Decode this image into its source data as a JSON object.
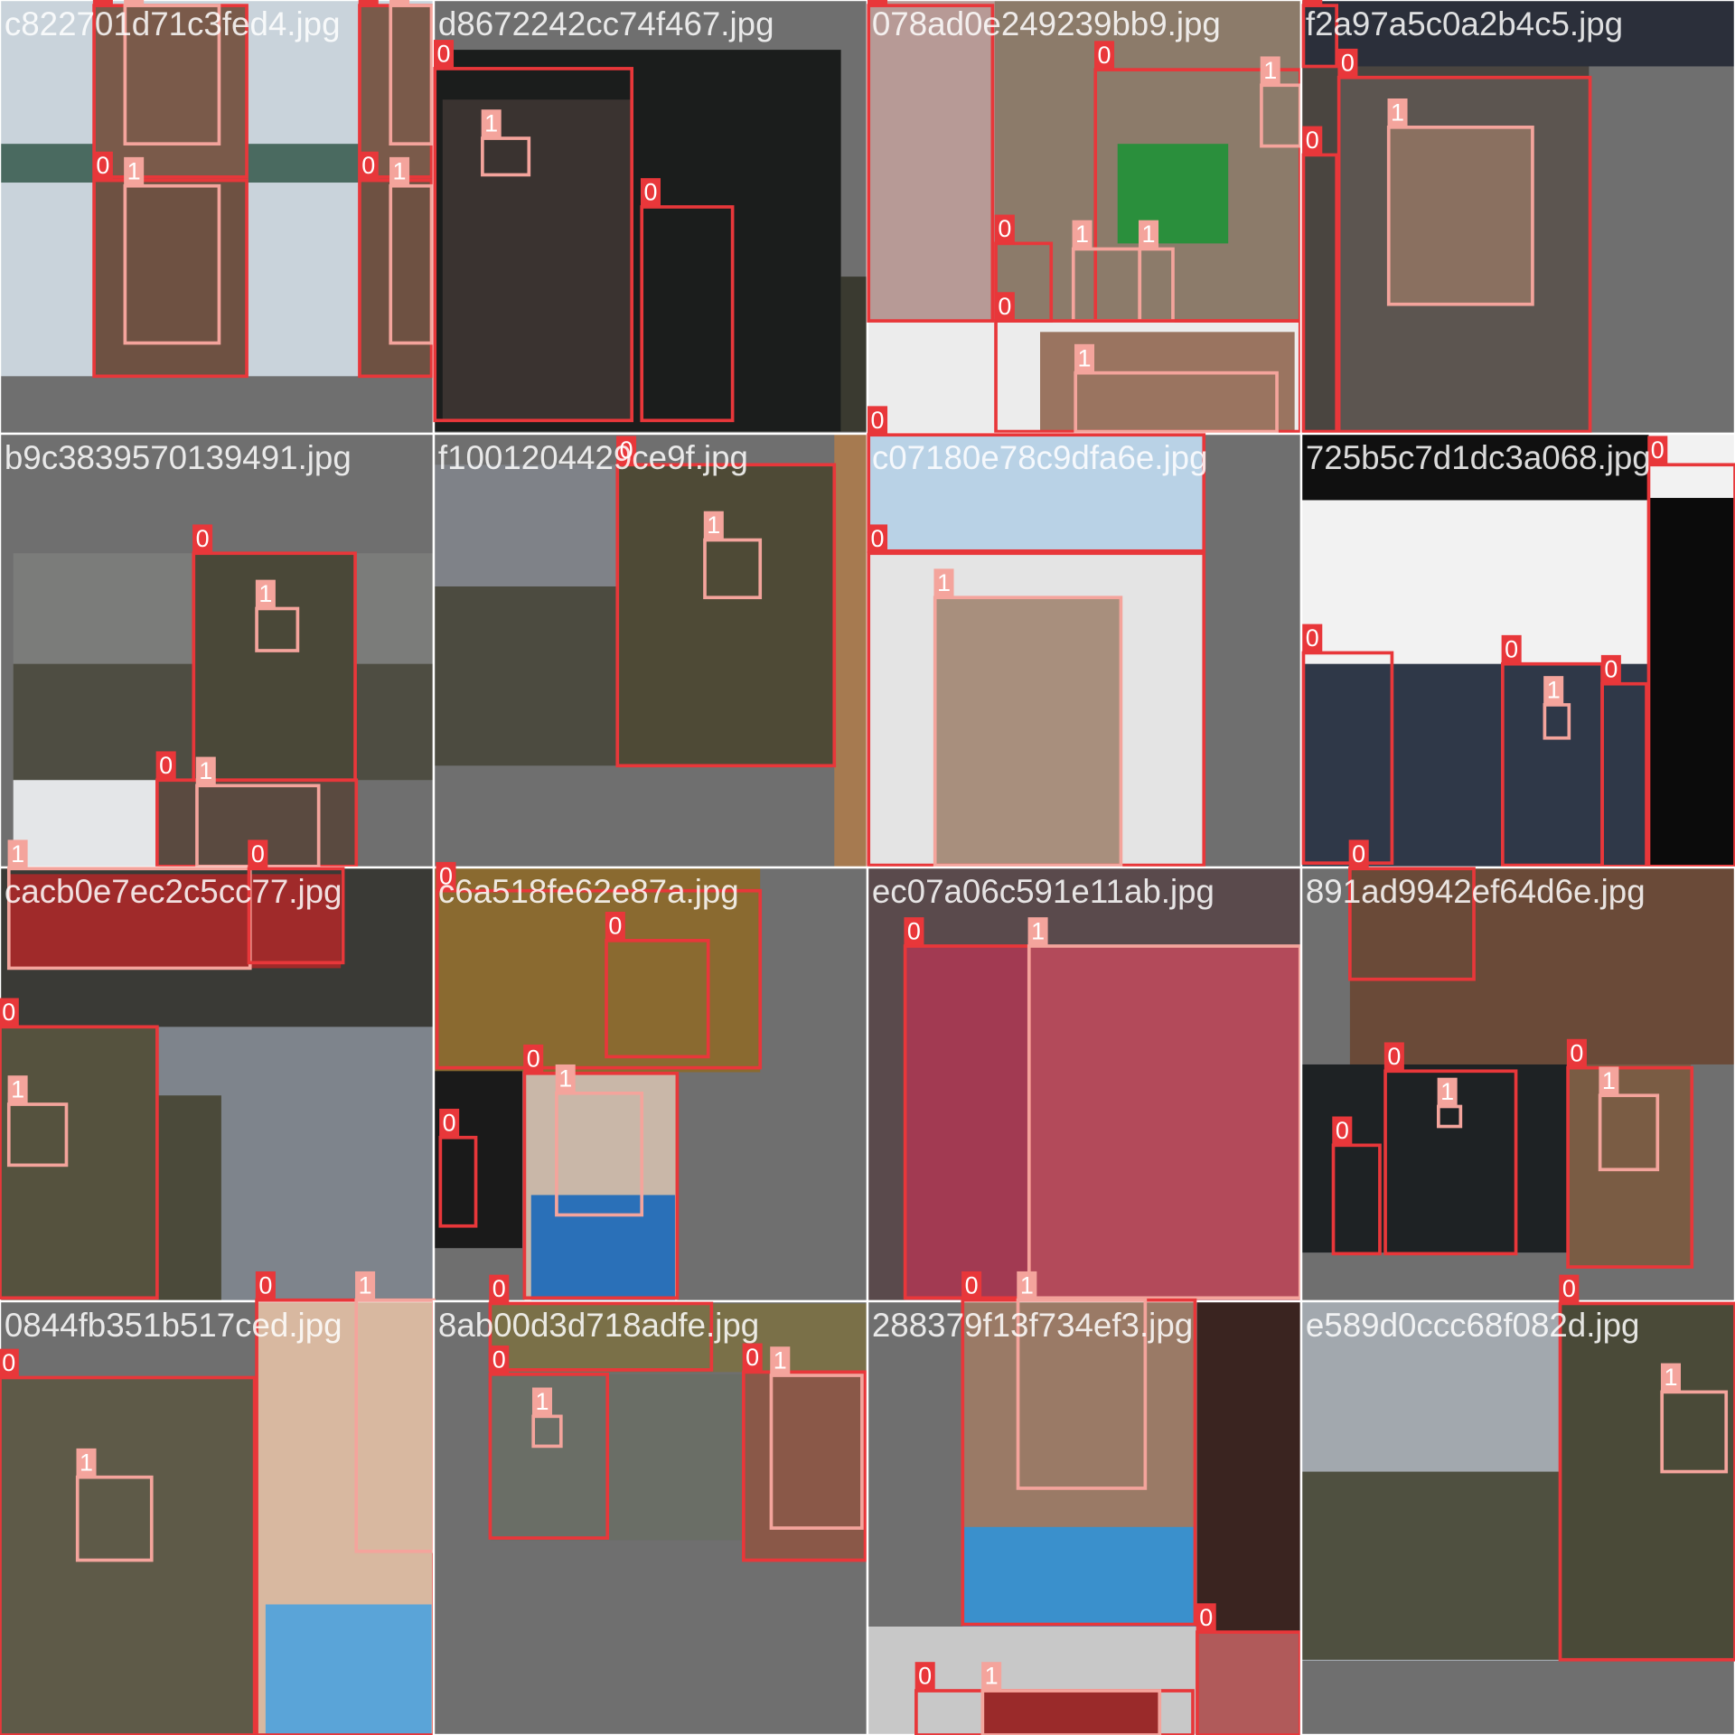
{
  "tiles": [
    {
      "filename": "c822701d71c3fed4.jpg",
      "boxes": [
        {
          "class": 0
        },
        {
          "class": 1
        },
        {
          "class": 0
        },
        {
          "class": 1
        },
        {
          "class": 0
        },
        {
          "class": 1
        },
        {
          "class": 0
        },
        {
          "class": 1
        }
      ]
    },
    {
      "filename": "d8672242cc74f467.jpg",
      "boxes": [
        {
          "class": 0
        },
        {
          "class": 1
        },
        {
          "class": 0
        }
      ]
    },
    {
      "filename": "078ad0e249239bb9.jpg",
      "boxes": [
        {
          "class": 0
        },
        {
          "class": 0
        },
        {
          "class": 1
        },
        {
          "class": 0
        },
        {
          "class": 1
        },
        {
          "class": 1
        },
        {
          "class": 0
        },
        {
          "class": 1
        }
      ]
    },
    {
      "filename": "f2a97a5c0a2b4c5.jpg",
      "boxes": [
        {
          "class": 0
        },
        {
          "class": 0
        },
        {
          "class": 1
        },
        {
          "class": 0
        }
      ]
    },
    {
      "filename": "b9c3839570139491.jpg",
      "boxes": [
        {
          "class": 0
        },
        {
          "class": 1
        },
        {
          "class": 0
        },
        {
          "class": 1
        }
      ]
    },
    {
      "filename": "f1001204429ce9f.jpg",
      "boxes": [
        {
          "class": 0
        },
        {
          "class": 1
        }
      ]
    },
    {
      "filename": "c07180e78c9dfa6e.jpg",
      "boxes": [
        {
          "class": 0
        },
        {
          "class": 0
        },
        {
          "class": 1
        }
      ]
    },
    {
      "filename": "725b5c7d1dc3a068.jpg",
      "boxes": [
        {
          "class": 0
        },
        {
          "class": 0
        },
        {
          "class": 1
        },
        {
          "class": 0
        },
        {
          "class": 0
        }
      ]
    },
    {
      "filename": "cacb0e7ec2c5cc77.jpg",
      "boxes": [
        {
          "class": 1
        },
        {
          "class": 0
        },
        {
          "class": 0
        },
        {
          "class": 1
        }
      ]
    },
    {
      "filename": "c6a518fe62e87a.jpg",
      "boxes": [
        {
          "class": 0
        },
        {
          "class": 0
        },
        {
          "class": 0
        },
        {
          "class": 1
        },
        {
          "class": 0
        }
      ]
    },
    {
      "filename": "ec07a06c591e11ab.jpg",
      "boxes": [
        {
          "class": 0
        },
        {
          "class": 1
        }
      ]
    },
    {
      "filename": "891ad9942ef64d6e.jpg",
      "boxes": [
        {
          "class": 0
        },
        {
          "class": 0
        },
        {
          "class": 1
        },
        {
          "class": 0
        },
        {
          "class": 1
        },
        {
          "class": 0
        }
      ]
    },
    {
      "filename": "0844fb351b517ced.jpg",
      "boxes": [
        {
          "class": 0
        },
        {
          "class": 1
        },
        {
          "class": 0
        },
        {
          "class": 1
        }
      ]
    },
    {
      "filename": "8ab00d3d718adfe.jpg",
      "boxes": [
        {
          "class": 0
        },
        {
          "class": 1
        },
        {
          "class": 0
        },
        {
          "class": 1
        },
        {
          "class": 0
        }
      ]
    },
    {
      "filename": "288379f13f734ef3.jpg",
      "boxes": [
        {
          "class": 0
        },
        {
          "class": 1
        },
        {
          "class": 0
        },
        {
          "class": 0
        },
        {
          "class": 1
        }
      ]
    },
    {
      "filename": "e589d0ccc68f082d.jpg",
      "boxes": [
        {
          "class": 0
        },
        {
          "class": 1
        }
      ]
    }
  ],
  "class_colors": [
    "#e8373a",
    "#f4a49c"
  ]
}
